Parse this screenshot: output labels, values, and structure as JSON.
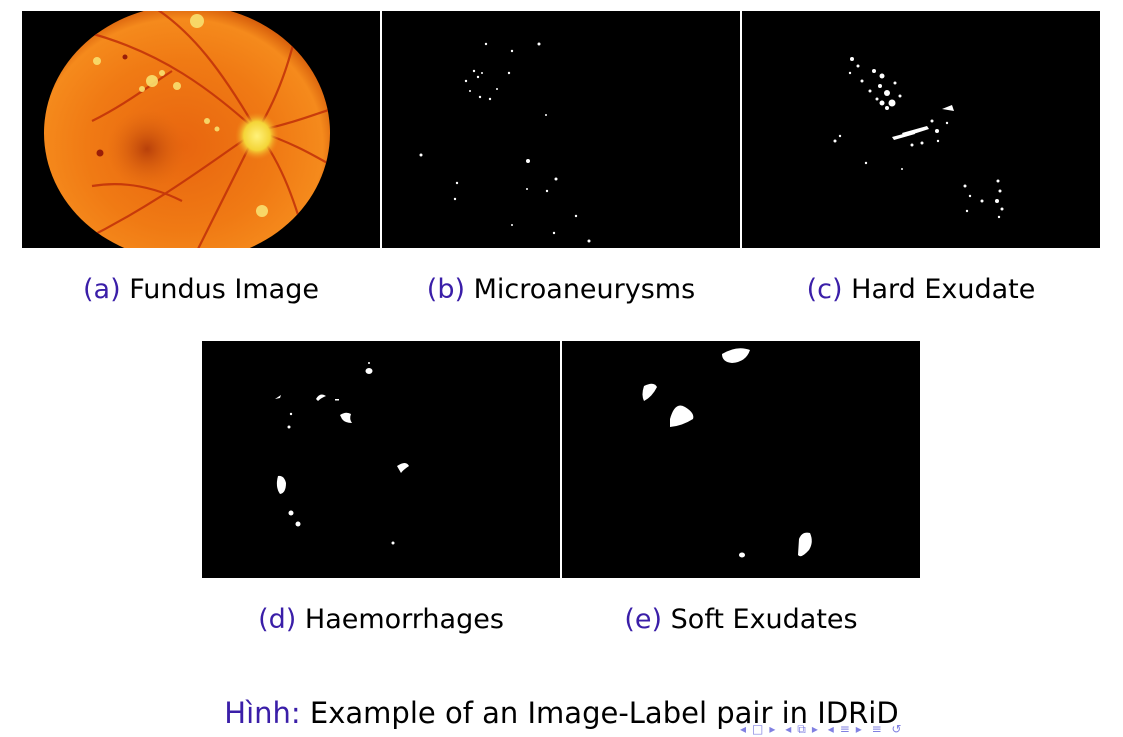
{
  "figure": {
    "label": "Hình",
    "separator": ":",
    "text": " Example of an Image-Label pair in IDRiD"
  },
  "panels": [
    {
      "letter": "(a)",
      "name": "Fundus Image"
    },
    {
      "letter": "(b)",
      "name": "Microaneurysms"
    },
    {
      "letter": "(c)",
      "name": "Hard Exudate"
    },
    {
      "letter": "(d)",
      "name": "Haemorrhages"
    },
    {
      "letter": "(e)",
      "name": "Soft Exudates"
    }
  ],
  "colors": {
    "caption_letter": "#3a1ea8",
    "mask_background": "#000000",
    "mask_lesion": "#ffffff",
    "fundus_orange": "#f07a14"
  },
  "icons": {
    "nav": [
      "nav-prev-frame-icon",
      "nav-frame-icon",
      "nav-next-frame-icon",
      "nav-prev-subsection-icon",
      "nav-subsection-icon",
      "nav-next-subsection-icon",
      "nav-prev-section-icon",
      "nav-section-icon",
      "nav-next-section-icon",
      "nav-appendix-icon",
      "nav-search-icon"
    ]
  }
}
